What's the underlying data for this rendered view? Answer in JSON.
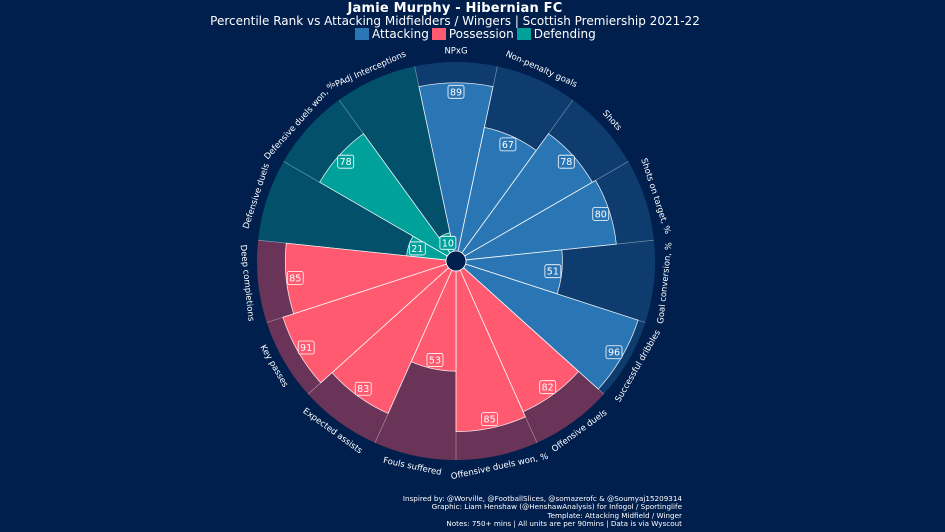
{
  "header": {
    "title": "Jamie Murphy - Hibernian FC",
    "subtitle": "Percentile Rank vs Attacking Midfielders / Wingers | Scottish Premiership 2021-22"
  },
  "legend": [
    {
      "label": "Attacking",
      "color": "#2a76b4"
    },
    {
      "label": "Possession",
      "color": "#ff5a70"
    },
    {
      "label": "Defending",
      "color": "#00a19a"
    }
  ],
  "chart_data": {
    "type": "radial_bar",
    "scale_max": 100,
    "series": [
      {
        "name": "Attacking",
        "color": "#2a76b4",
        "track_color": "#0f3c6e"
      },
      {
        "name": "Possession",
        "color": "#ff5a70",
        "track_color": "#6a3358"
      },
      {
        "name": "Defending",
        "color": "#00a19a",
        "track_color": "#03506a"
      }
    ],
    "metrics": [
      {
        "label": "NPxG",
        "value": 89,
        "group": "Attacking"
      },
      {
        "label": "Non-penalty goals",
        "value": 67,
        "group": "Attacking"
      },
      {
        "label": "Shots",
        "value": 78,
        "group": "Attacking"
      },
      {
        "label": "Shots on target, %",
        "value": 80,
        "group": "Attacking"
      },
      {
        "label": "Goal conversion, %",
        "value": 51,
        "group": "Attacking"
      },
      {
        "label": "Successful dribbles",
        "value": 96,
        "group": "Attacking"
      },
      {
        "label": "Offensive duels",
        "value": 82,
        "group": "Possession"
      },
      {
        "label": "Offensive duels won, %",
        "value": 85,
        "group": "Possession"
      },
      {
        "label": "Fouls suffered",
        "value": 53,
        "group": "Possession"
      },
      {
        "label": "Expected assists",
        "value": 83,
        "group": "Possession"
      },
      {
        "label": "Key passes",
        "value": 91,
        "group": "Possession"
      },
      {
        "label": "Deep completions",
        "value": 85,
        "group": "Possession"
      },
      {
        "label": "Defensive duels",
        "value": 21,
        "group": "Defending"
      },
      {
        "label": "Defensive duels won, %",
        "value": 78,
        "group": "Defending"
      },
      {
        "label": "PAdj Interceptions",
        "value": 10,
        "group": "Defending"
      }
    ]
  },
  "credits": [
    "Inspired by: @Worville, @FootballSlices, @somazerofc & @Soumyaj15209314",
    "Graphic: Liam Henshaw (@HenshawAnalysis) for Infogol / Sportinglife",
    "Template: Attacking Midfield / Winger",
    "Notes: 750+ mins | All units are per 90mins | Data is via Wyscout"
  ]
}
